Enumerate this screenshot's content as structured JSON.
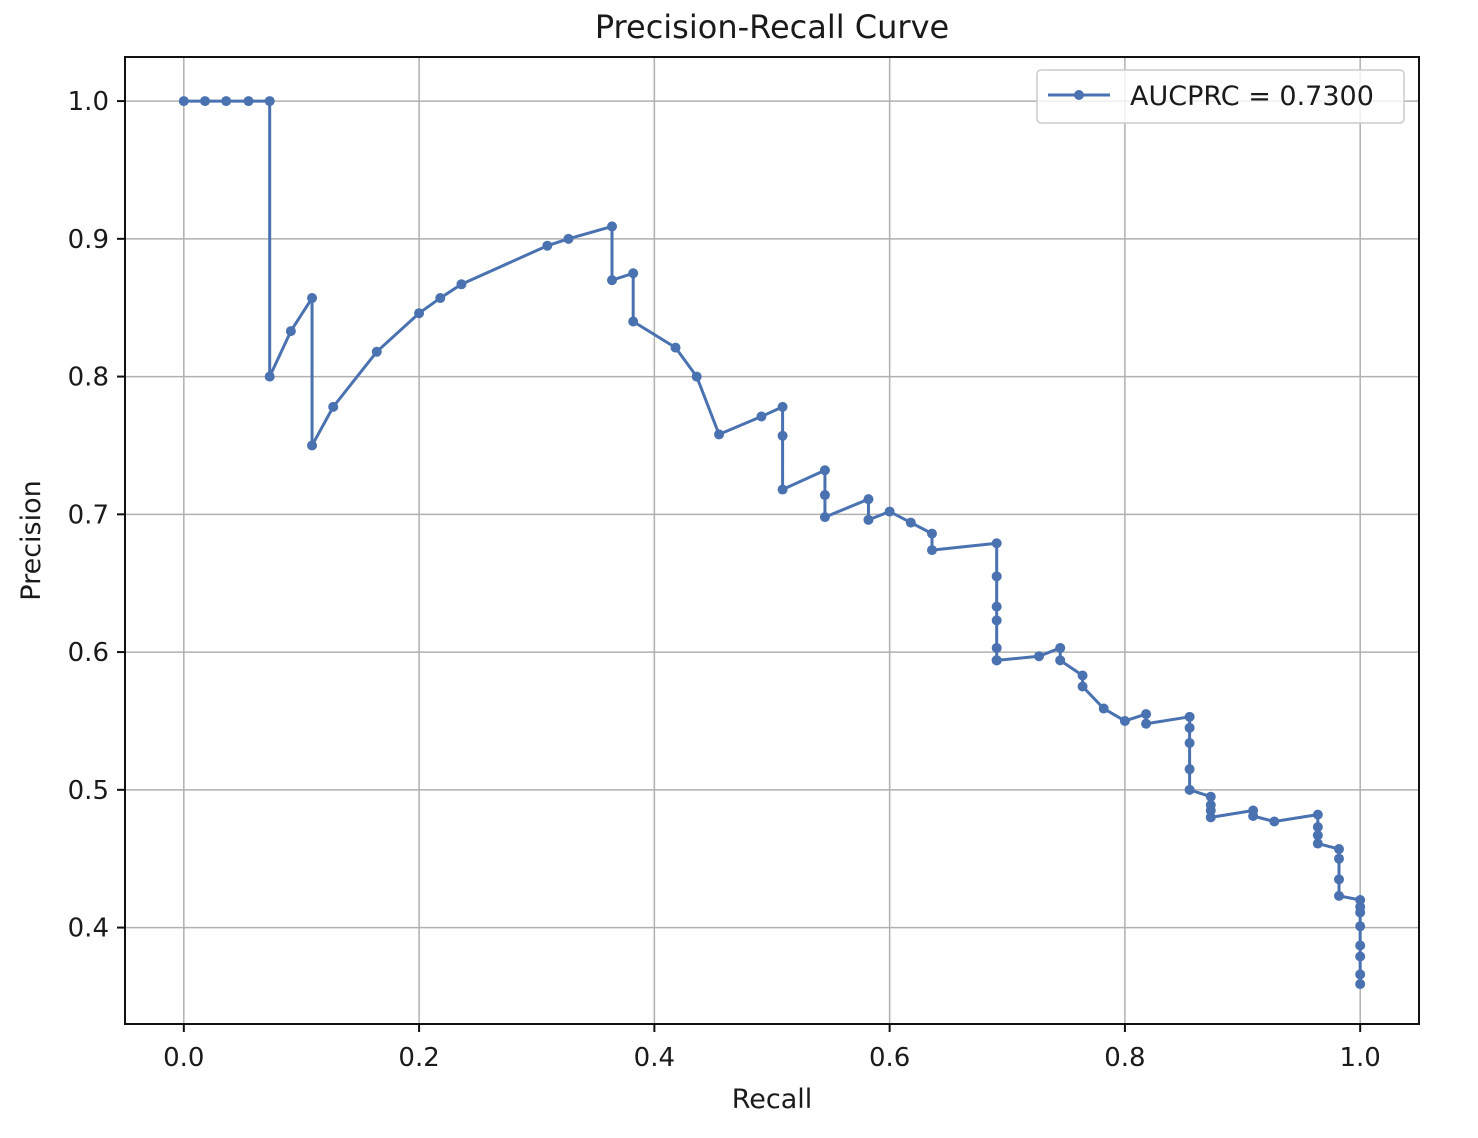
{
  "chart_data": {
    "type": "line",
    "title": "Precision-Recall Curve",
    "xlabel": "Recall",
    "ylabel": "Precision",
    "xlim": [
      -0.05,
      1.05
    ],
    "ylim": [
      0.33,
      1.032
    ],
    "xticks": [
      0.0,
      0.2,
      0.4,
      0.6,
      0.8,
      1.0
    ],
    "xtick_labels": [
      "0.0",
      "0.2",
      "0.4",
      "0.6",
      "0.8",
      "1.0"
    ],
    "yticks": [
      0.4,
      0.5,
      0.6,
      0.7,
      0.8,
      0.9,
      1.0
    ],
    "ytick_labels": [
      "0.4",
      "0.5",
      "0.6",
      "0.7",
      "0.8",
      "0.9",
      "1.0"
    ],
    "grid": true,
    "legend_position": "top-right",
    "series": [
      {
        "name": "AUCPRC = 0.7300",
        "color": "#4a72b0",
        "marker": "circle",
        "x": [
          0.0,
          0.018,
          0.036,
          0.055,
          0.073,
          0.073,
          0.091,
          0.109,
          0.109,
          0.127,
          0.164,
          0.2,
          0.218,
          0.236,
          0.309,
          0.327,
          0.364,
          0.364,
          0.382,
          0.382,
          0.418,
          0.436,
          0.455,
          0.491,
          0.509,
          0.509,
          0.509,
          0.545,
          0.545,
          0.545,
          0.582,
          0.582,
          0.6,
          0.618,
          0.636,
          0.636,
          0.691,
          0.691,
          0.691,
          0.691,
          0.691,
          0.691,
          0.691,
          0.727,
          0.745,
          0.745,
          0.764,
          0.764,
          0.782,
          0.8,
          0.818,
          0.818,
          0.855,
          0.855,
          0.855,
          0.855,
          0.855,
          0.873,
          0.873,
          0.873,
          0.873,
          0.909,
          0.909,
          0.927,
          0.964,
          0.964,
          0.964,
          0.964,
          0.982,
          0.982,
          0.982,
          0.982,
          1.0,
          1.0,
          1.0,
          1.0,
          1.0,
          1.0,
          1.0,
          1.0
        ],
        "y": [
          1.0,
          1.0,
          1.0,
          1.0,
          1.0,
          0.8,
          0.833,
          0.857,
          0.75,
          0.778,
          0.818,
          0.846,
          0.857,
          0.867,
          0.895,
          0.9,
          0.909,
          0.87,
          0.875,
          0.84,
          0.821,
          0.8,
          0.758,
          0.771,
          0.778,
          0.757,
          0.718,
          0.732,
          0.714,
          0.698,
          0.711,
          0.696,
          0.702,
          0.694,
          0.686,
          0.674,
          0.679,
          0.655,
          0.633,
          0.623,
          0.603,
          0.594,
          0.594,
          0.597,
          0.603,
          0.594,
          0.583,
          0.575,
          0.559,
          0.55,
          0.555,
          0.548,
          0.553,
          0.545,
          0.534,
          0.515,
          0.5,
          0.495,
          0.489,
          0.485,
          0.48,
          0.485,
          0.481,
          0.477,
          0.482,
          0.473,
          0.467,
          0.461,
          0.457,
          0.45,
          0.435,
          0.423,
          0.42,
          0.415,
          0.411,
          0.401,
          0.387,
          0.379,
          0.366,
          0.359
        ]
      }
    ]
  }
}
